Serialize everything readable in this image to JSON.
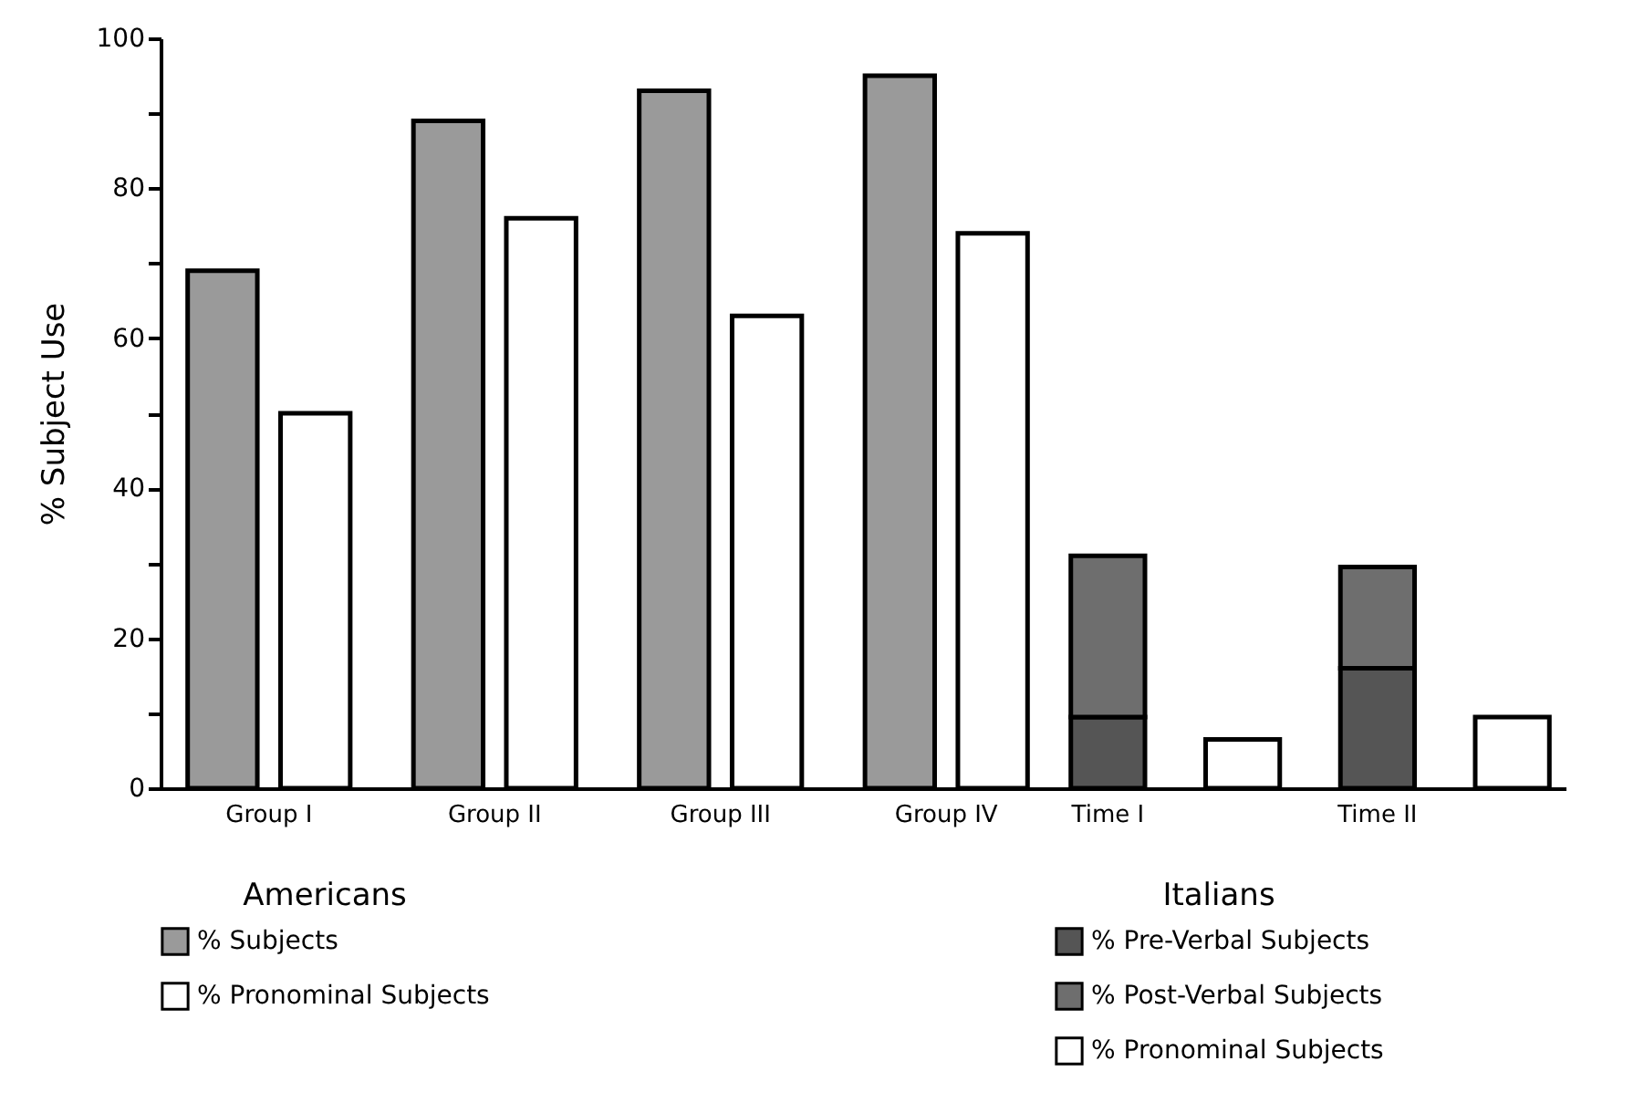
{
  "chart_data": [
    {
      "type": "bar",
      "ylabel": "% Subject Use",
      "legend_title": "Americans",
      "legend": "bottom",
      "categories": [
        "Group I",
        "Group II",
        "Group III",
        "Group IV"
      ],
      "series": [
        {
          "name": "% Subjects",
          "color": "#9a9a9a",
          "values": [
            69,
            89,
            93,
            95
          ]
        },
        {
          "name": "% Pronominal Subjects",
          "color": "#ffffff",
          "values": [
            50,
            76,
            63,
            74
          ]
        }
      ],
      "ylim": [
        0,
        100
      ],
      "yticks": [
        0,
        {
          "value": 10,
          "label": null
        },
        20,
        {
          "value": 30,
          "label": null
        },
        40,
        {
          "value": 50,
          "label": null
        },
        60,
        {
          "value": 70,
          "label": null
        },
        80,
        {
          "value": 90,
          "label": null
        },
        100
      ]
    },
    {
      "type": "bar",
      "stacked": true,
      "legend_title": "Italians",
      "legend": "bottom",
      "tick_labels": "x",
      "categories": [
        "Time I",
        null,
        "Time II",
        null
      ],
      "series": [
        {
          "name": "% Pre-Verbal Subjects",
          "color": "#555555",
          "values": [
            9.5,
            null,
            16,
            null
          ]
        },
        {
          "name": "% Post-Verbal Subjects",
          "color": "#6e6e6e",
          "values": [
            21.5,
            null,
            13.5,
            null
          ]
        },
        {
          "name": "% Pronominal Subjects",
          "color": "#ffffff",
          "values": [
            null,
            6.5,
            null,
            9.5
          ]
        }
      ],
      "ylim": [
        0,
        100
      ]
    }
  ]
}
